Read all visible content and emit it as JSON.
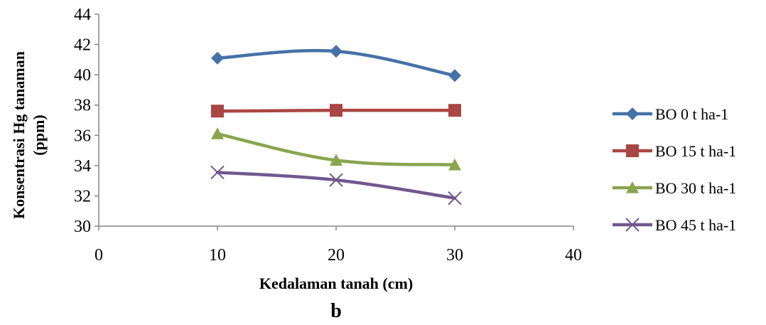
{
  "chart_data": {
    "type": "line",
    "smooth": true,
    "xlabel": "Kedalaman tanah (cm)",
    "ylabel_lines": [
      "Konsentrasi Hg tanaman",
      "(ppm)"
    ],
    "panel_label": "b",
    "xlim": [
      0,
      40
    ],
    "ylim": [
      30,
      44
    ],
    "x_ticks": [
      0,
      10,
      20,
      30,
      40
    ],
    "y_ticks": [
      30,
      32,
      34,
      36,
      38,
      40,
      42,
      44
    ],
    "x": [
      10,
      20,
      30
    ],
    "legend_position": "right",
    "grid": false,
    "series": [
      {
        "name": "BO 0 t ha-1",
        "color": "#4572A7",
        "marker": "diamond",
        "values": [
          41.1,
          41.55,
          39.95
        ]
      },
      {
        "name": "BO 15 t ha-1",
        "color": "#AA4643",
        "marker": "square",
        "values": [
          37.6,
          37.65,
          37.65
        ]
      },
      {
        "name": "BO 30 t ha-1",
        "color": "#89A54E",
        "marker": "triangle",
        "values": [
          36.1,
          34.35,
          34.05
        ]
      },
      {
        "name": "BO 45 t ha-1",
        "color": "#71588F",
        "marker": "x",
        "values": [
          33.55,
          33.05,
          31.85
        ]
      }
    ]
  }
}
